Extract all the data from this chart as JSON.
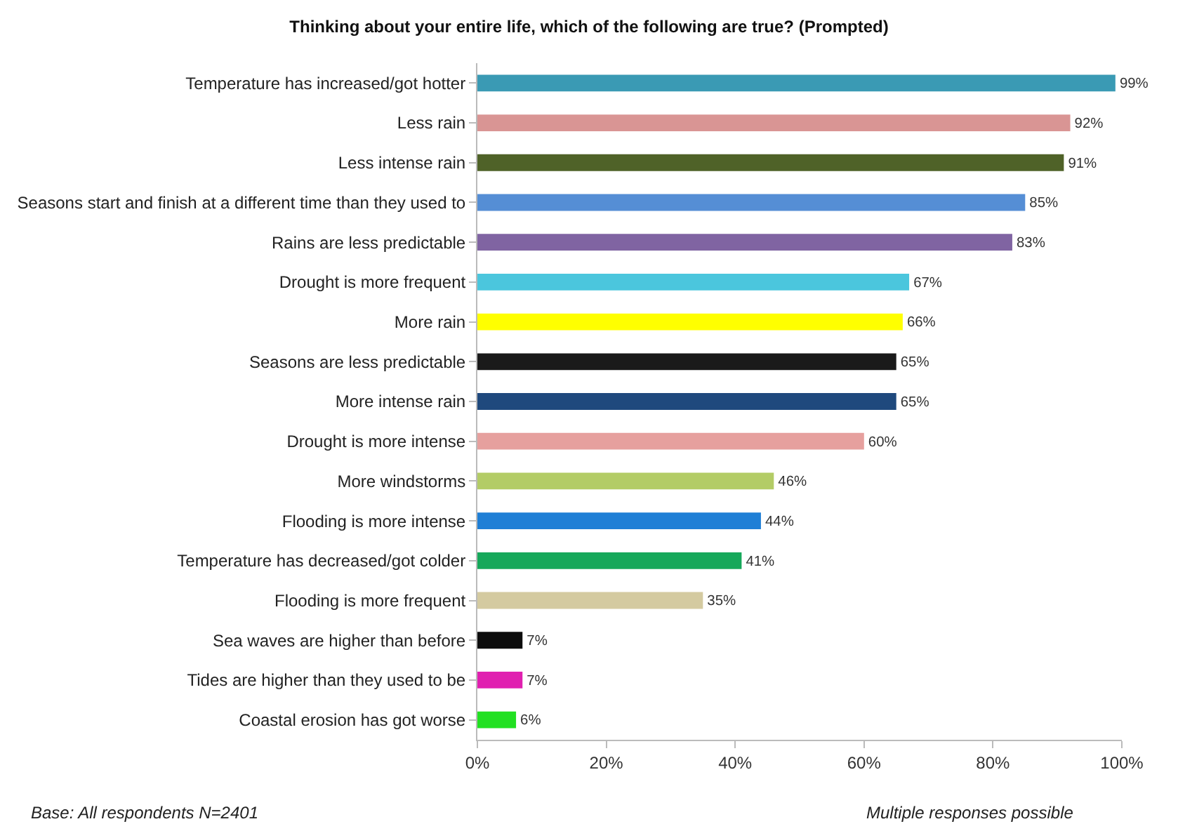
{
  "chart_data": {
    "type": "bar",
    "orientation": "horizontal",
    "title": "Thinking about your entire life, which of the following are true? (Prompted)",
    "categories": [
      "Temperature has increased/got hotter",
      "Less rain",
      "Less intense rain",
      "Seasons start and finish at a different time than they used to",
      "Rains are less predictable",
      "Drought is more frequent",
      "More rain",
      "Seasons are less predictable",
      "More intense rain",
      "Drought is more intense",
      "More windstorms",
      "Flooding is more intense",
      "Temperature has decreased/got colder",
      "Flooding is more frequent",
      "Sea waves are higher than before",
      "Tides are higher than they used to be",
      "Coastal erosion has got worse"
    ],
    "values": [
      99,
      92,
      91,
      85,
      83,
      67,
      66,
      65,
      65,
      60,
      46,
      44,
      41,
      35,
      7,
      7,
      6
    ],
    "value_labels": [
      "99%",
      "92%",
      "91%",
      "85%",
      "83%",
      "67%",
      "66%",
      "65%",
      "65%",
      "60%",
      "46%",
      "44%",
      "41%",
      "35%",
      "7%",
      "7%",
      "6%"
    ],
    "colors": [
      "#3a9ab4",
      "#d99594",
      "#4f6228",
      "#558ed5",
      "#8064a2",
      "#4bc6dd",
      "#ffff00",
      "#1a1a1a",
      "#1f497d",
      "#e6a09e",
      "#b3cc66",
      "#1f7fd6",
      "#16a85a",
      "#d4caa0",
      "#0d0d0d",
      "#e020b0",
      "#22e022"
    ],
    "xlim": [
      0,
      100
    ],
    "xticks": [
      {
        "value": 0,
        "label": "0%"
      },
      {
        "value": 20,
        "label": "20%"
      },
      {
        "value": 40,
        "label": "40%"
      },
      {
        "value": 60,
        "label": "60%"
      },
      {
        "value": 80,
        "label": "80%"
      },
      {
        "value": 100,
        "label": "100%"
      }
    ],
    "grid": false,
    "annotations": [
      "Base: All respondents N=2401",
      "Multiple responses possible"
    ]
  }
}
